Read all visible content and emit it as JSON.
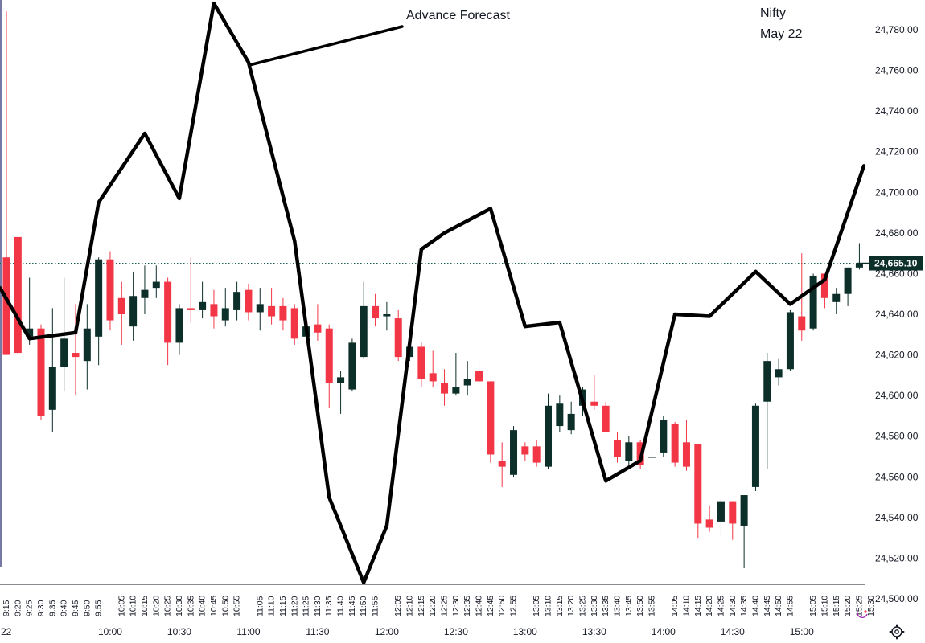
{
  "chart_data": {
    "type": "candlestick",
    "instrument": "Nifty",
    "date_label": "May 22",
    "annotation": "Advance Forecast",
    "last_price_label": "24,665.10",
    "last_price": 24665.1,
    "ylim": [
      24497,
      24795
    ],
    "y_ticks": [
      24500,
      24520,
      24540,
      24560,
      24580,
      24600,
      24620,
      24640,
      24660,
      24680,
      24700,
      24720,
      24740,
      24760,
      24780
    ],
    "y_tick_labels": [
      "24,500.00",
      "24,520.00",
      "24,540.00",
      "24,560.00",
      "24,580.00",
      "24,600.00",
      "24,620.00",
      "24,640.00",
      "24,660.00",
      "24,680.00",
      "24,700.00",
      "24,720.00",
      "24,740.00",
      "24,760.00",
      "24,780.00"
    ],
    "x_labels": [
      "9:15",
      "9:20",
      "9:25",
      "9:30",
      "9:35",
      "9:40",
      "9:45",
      "9:50",
      "9:55",
      "10:00",
      "10:05",
      "10:10",
      "10:15",
      "10:20",
      "10:25",
      "10:30",
      "10:35",
      "10:40",
      "10:45",
      "10:50",
      "10:55",
      "11:00",
      "11:05",
      "11:10",
      "11:15",
      "11:20",
      "11:25",
      "11:30",
      "11:35",
      "11:40",
      "11:45",
      "11:50",
      "11:55",
      "12:00",
      "12:05",
      "12:10",
      "12:15",
      "12:20",
      "12:25",
      "12:30",
      "12:35",
      "12:40",
      "12:45",
      "12:50",
      "12:55",
      "13:00",
      "13:05",
      "13:10",
      "13:15",
      "13:20",
      "13:25",
      "13:30",
      "13:35",
      "13:40",
      "13:45",
      "13:50",
      "13:55",
      "14:00",
      "14:05",
      "14:10",
      "14:15",
      "14:20",
      "14:25",
      "14:30",
      "14:35",
      "14:40",
      "14:45",
      "14:50",
      "14:55",
      "15:00",
      "15:05",
      "15:10",
      "15:15",
      "15:20",
      "15:25",
      "15:30"
    ],
    "x_axis_minor_labels": [
      "9:15",
      "9:20",
      "9:25",
      "9:30",
      "9:35",
      "9:40",
      "9:45",
      "9:50",
      "9:55",
      "10:05",
      "10:10",
      "10:15",
      "10:20",
      "10:25",
      "10:30",
      "10:35",
      "10:40",
      "10:45",
      "10:50",
      "10:55",
      "11:05",
      "11:10",
      "11:15",
      "11:20",
      "11:25",
      "11:30",
      "11:35",
      "11:40",
      "11:45",
      "11:50",
      "11:55",
      "12:05",
      "12:10",
      "12:15",
      "12:20",
      "12:25",
      "12:30",
      "12:35",
      "12:40",
      "12:45",
      "12:50",
      "12:55",
      "13:05",
      "13:10",
      "13:15",
      "13:20",
      "13:25",
      "13:30",
      "13:35",
      "13:40",
      "13:45",
      "13:50",
      "13:55",
      "14:05",
      "14:10",
      "14:15",
      "14:20",
      "14:25",
      "14:30",
      "14:35",
      "14:40",
      "14:45",
      "14:50",
      "14:55",
      "15:05",
      "15:10",
      "15:15",
      "15:20",
      "15:25",
      "15:30"
    ],
    "x_axis_major_labels": [
      "22",
      "10:00",
      "10:30",
      "11:00",
      "11:30",
      "12:00",
      "12:30",
      "13:00",
      "13:30",
      "14:00",
      "14:30",
      "15:00"
    ],
    "colors": {
      "up": "#0c2f2a",
      "down": "#f23645",
      "forecast": "#000000",
      "price_line": "#1b5e55",
      "price_tag_bg": "#0c2f2a"
    },
    "candles": [
      {
        "t": "9:15",
        "o": 24668,
        "h": 24789,
        "l": 24620,
        "c": 24620
      },
      {
        "t": "9:20",
        "o": 24678,
        "h": 24678,
        "l": 24620,
        "c": 24621
      },
      {
        "t": "9:25",
        "o": 24629,
        "h": 24658,
        "l": 24625,
        "c": 24633
      },
      {
        "t": "9:30",
        "o": 24633,
        "h": 24635,
        "l": 24588,
        "c": 24590
      },
      {
        "t": "9:35",
        "o": 24593,
        "h": 24643,
        "l": 24582,
        "c": 24614
      },
      {
        "t": "9:40",
        "o": 24614,
        "h": 24658,
        "l": 24602,
        "c": 24628
      },
      {
        "t": "9:45",
        "o": 24621,
        "h": 24645,
        "l": 24600,
        "c": 24619
      },
      {
        "t": "9:50",
        "o": 24617,
        "h": 24645,
        "l": 24603,
        "c": 24633
      },
      {
        "t": "9:55",
        "o": 24629,
        "h": 24668,
        "l": 24615,
        "c": 24667
      },
      {
        "t": "10:00",
        "o": 24667,
        "h": 24671,
        "l": 24632,
        "c": 24637
      },
      {
        "t": "10:05",
        "o": 24648,
        "h": 24656,
        "l": 24625,
        "c": 24640
      },
      {
        "t": "10:10",
        "o": 24634,
        "h": 24661,
        "l": 24627,
        "c": 24649
      },
      {
        "t": "10:15",
        "o": 24648,
        "h": 24664,
        "l": 24640,
        "c": 24652
      },
      {
        "t": "10:20",
        "o": 24653,
        "h": 24664,
        "l": 24648,
        "c": 24656
      },
      {
        "t": "10:25",
        "o": 24656,
        "h": 24658,
        "l": 24615,
        "c": 24626
      },
      {
        "t": "10:30",
        "o": 24626,
        "h": 24645,
        "l": 24620,
        "c": 24643
      },
      {
        "t": "10:35",
        "o": 24643,
        "h": 24668,
        "l": 24636,
        "c": 24642
      },
      {
        "t": "10:40",
        "o": 24642,
        "h": 24656,
        "l": 24638,
        "c": 24646
      },
      {
        "t": "10:45",
        "o": 24645,
        "h": 24652,
        "l": 24633,
        "c": 24639
      },
      {
        "t": "10:50",
        "o": 24637,
        "h": 24653,
        "l": 24634,
        "c": 24643
      },
      {
        "t": "10:55",
        "o": 24642,
        "h": 24656,
        "l": 24637,
        "c": 24651
      },
      {
        "t": "11:00",
        "o": 24652,
        "h": 24655,
        "l": 24637,
        "c": 24641
      },
      {
        "t": "11:05",
        "o": 24641,
        "h": 24653,
        "l": 24632,
        "c": 24645
      },
      {
        "t": "11:10",
        "o": 24644,
        "h": 24653,
        "l": 24635,
        "c": 24639
      },
      {
        "t": "11:15",
        "o": 24644,
        "h": 24648,
        "l": 24632,
        "c": 24637
      },
      {
        "t": "11:20",
        "o": 24643,
        "h": 24645,
        "l": 24625,
        "c": 24628
      },
      {
        "t": "11:25",
        "o": 24629,
        "h": 24638,
        "l": 24628,
        "c": 24634
      },
      {
        "t": "11:30",
        "o": 24635,
        "h": 24645,
        "l": 24627,
        "c": 24631
      },
      {
        "t": "11:35",
        "o": 24633,
        "h": 24635,
        "l": 24594,
        "c": 24606
      },
      {
        "t": "11:40",
        "o": 24606,
        "h": 24612,
        "l": 24591,
        "c": 24609
      },
      {
        "t": "11:45",
        "o": 24603,
        "h": 24628,
        "l": 24602,
        "c": 24626
      },
      {
        "t": "11:50",
        "o": 24619,
        "h": 24656,
        "l": 24618,
        "c": 24644
      },
      {
        "t": "11:55",
        "o": 24644,
        "h": 24650,
        "l": 24634,
        "c": 24638
      },
      {
        "t": "12:00",
        "o": 24639,
        "h": 24646,
        "l": 24632,
        "c": 24640
      },
      {
        "t": "12:05",
        "o": 24638,
        "h": 24642,
        "l": 24617,
        "c": 24619
      },
      {
        "t": "12:10",
        "o": 24619,
        "h": 24627,
        "l": 24617,
        "c": 24624
      },
      {
        "t": "12:15",
        "o": 24624,
        "h": 24626,
        "l": 24604,
        "c": 24608
      },
      {
        "t": "12:20",
        "o": 24611,
        "h": 24622,
        "l": 24604,
        "c": 24607
      },
      {
        "t": "12:25",
        "o": 24606,
        "h": 24613,
        "l": 24595,
        "c": 24601
      },
      {
        "t": "12:30",
        "o": 24601,
        "h": 24621,
        "l": 24600,
        "c": 24604
      },
      {
        "t": "12:35",
        "o": 24605,
        "h": 24617,
        "l": 24600,
        "c": 24608
      },
      {
        "t": "12:40",
        "o": 24612,
        "h": 24617,
        "l": 24605,
        "c": 24607
      },
      {
        "t": "12:45",
        "o": 24607,
        "h": 24607,
        "l": 24567,
        "c": 24571
      },
      {
        "t": "12:50",
        "o": 24568,
        "h": 24577,
        "l": 24555,
        "c": 24565
      },
      {
        "t": "12:55",
        "o": 24561,
        "h": 24585,
        "l": 24560,
        "c": 24583
      },
      {
        "t": "13:00",
        "o": 24575,
        "h": 24577,
        "l": 24568,
        "c": 24571
      },
      {
        "t": "13:05",
        "o": 24575,
        "h": 24578,
        "l": 24565,
        "c": 24567
      },
      {
        "t": "13:10",
        "o": 24565,
        "h": 24601,
        "l": 24564,
        "c": 24595
      },
      {
        "t": "13:15",
        "o": 24585,
        "h": 24600,
        "l": 24582,
        "c": 24596
      },
      {
        "t": "13:20",
        "o": 24583,
        "h": 24597,
        "l": 24581,
        "c": 24591
      },
      {
        "t": "13:25",
        "o": 24595,
        "h": 24604,
        "l": 24590,
        "c": 24603
      },
      {
        "t": "13:30",
        "o": 24597,
        "h": 24610,
        "l": 24593,
        "c": 24595
      },
      {
        "t": "13:35",
        "o": 24595,
        "h": 24597,
        "l": 24582,
        "c": 24582
      },
      {
        "t": "13:40",
        "o": 24578,
        "h": 24582,
        "l": 24567,
        "c": 24570
      },
      {
        "t": "13:45",
        "o": 24568,
        "h": 24580,
        "l": 24566,
        "c": 24577
      },
      {
        "t": "13:50",
        "o": 24577,
        "h": 24578,
        "l": 24564,
        "c": 24566
      },
      {
        "t": "13:55",
        "o": 24570,
        "h": 24572,
        "l": 24568,
        "c": 24570
      },
      {
        "t": "14:00",
        "o": 24572,
        "h": 24590,
        "l": 24570,
        "c": 24588
      },
      {
        "t": "14:05",
        "o": 24586,
        "h": 24587,
        "l": 24565,
        "c": 24567
      },
      {
        "t": "14:10",
        "o": 24577,
        "h": 24588,
        "l": 24563,
        "c": 24565
      },
      {
        "t": "14:15",
        "o": 24576,
        "h": 24576,
        "l": 24530,
        "c": 24537
      },
      {
        "t": "14:20",
        "o": 24539,
        "h": 24546,
        "l": 24533,
        "c": 24535
      },
      {
        "t": "14:25",
        "o": 24538,
        "h": 24549,
        "l": 24531,
        "c": 24548
      },
      {
        "t": "14:30",
        "o": 24548,
        "h": 24548,
        "l": 24529,
        "c": 24537
      },
      {
        "t": "14:35",
        "o": 24536,
        "h": 24551,
        "l": 24515,
        "c": 24551
      },
      {
        "t": "14:40",
        "o": 24555,
        "h": 24596,
        "l": 24553,
        "c": 24595
      },
      {
        "t": "14:45",
        "o": 24597,
        "h": 24621,
        "l": 24564,
        "c": 24617
      },
      {
        "t": "14:50",
        "o": 24609,
        "h": 24618,
        "l": 24605,
        "c": 24613
      },
      {
        "t": "14:55",
        "o": 24613,
        "h": 24642,
        "l": 24612,
        "c": 24641
      },
      {
        "t": "15:00",
        "o": 24639,
        "h": 24670,
        "l": 24627,
        "c": 24632
      },
      {
        "t": "15:05",
        "o": 24633,
        "h": 24660,
        "l": 24632,
        "c": 24659
      },
      {
        "t": "15:10",
        "o": 24660,
        "h": 24660,
        "l": 24643,
        "c": 24648
      },
      {
        "t": "15:15",
        "o": 24646,
        "h": 24653,
        "l": 24640,
        "c": 24650
      },
      {
        "t": "15:20",
        "o": 24650,
        "h": 24663,
        "l": 24644,
        "c": 24663
      },
      {
        "t": "15:25",
        "o": 24663,
        "h": 24675,
        "l": 24662,
        "c": 24665
      }
    ],
    "forecast_series": {
      "name": "Advance Forecast",
      "points": [
        {
          "t": "9:15",
          "y": 24653
        },
        {
          "t": "9:25",
          "y": 24628
        },
        {
          "t": "9:45",
          "y": 24631
        },
        {
          "t": "9:55",
          "y": 24695
        },
        {
          "t": "10:15",
          "y": 24729
        },
        {
          "t": "10:30",
          "y": 24697
        },
        {
          "t": "10:45",
          "y": 24793
        },
        {
          "t": "11:00",
          "y": 24764
        },
        {
          "t": "11:20",
          "y": 24676
        },
        {
          "t": "11:35",
          "y": 24550
        },
        {
          "t": "11:50",
          "y": 24508
        },
        {
          "t": "12:00",
          "y": 24536
        },
        {
          "t": "12:15",
          "y": 24672
        },
        {
          "t": "12:25",
          "y": 24680
        },
        {
          "t": "12:45",
          "y": 24692
        },
        {
          "t": "13:00",
          "y": 24634
        },
        {
          "t": "13:15",
          "y": 24636
        },
        {
          "t": "13:35",
          "y": 24558
        },
        {
          "t": "13:50",
          "y": 24568
        },
        {
          "t": "14:05",
          "y": 24640
        },
        {
          "t": "14:20",
          "y": 24639
        },
        {
          "t": "14:40",
          "y": 24661
        },
        {
          "t": "14:55",
          "y": 24645
        },
        {
          "t": "15:10",
          "y": 24657
        },
        {
          "t": "15:30",
          "y": 24713
        }
      ]
    }
  }
}
